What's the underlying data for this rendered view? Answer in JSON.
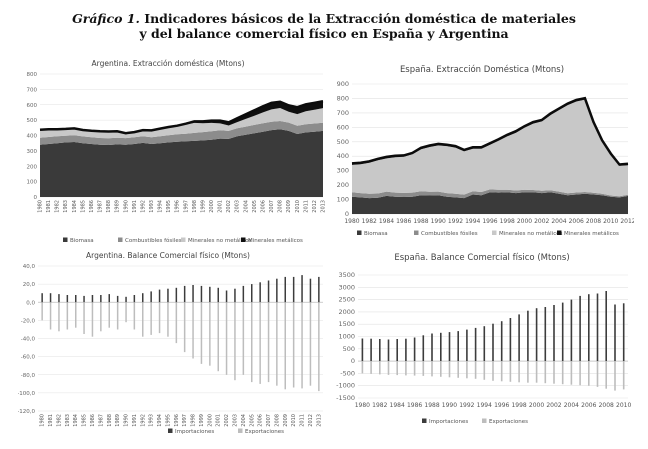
{
  "figure": {
    "title_prefix": "Gráfico 1.",
    "title_line1": "Indicadores básicos de la Extracción doméstica de materiales",
    "title_line2": "y del balance comercial físico en España y Argentina"
  },
  "chart_data": [
    {
      "id": "arg-extraccion",
      "type": "area",
      "stacked": true,
      "title": "Argentina. Extracción doméstica (Mtons)",
      "ylim": [
        0,
        800
      ],
      "yticks": [
        0,
        100,
        200,
        300,
        400,
        500,
        600,
        700,
        800
      ],
      "grid": true,
      "legend_position": "bottom",
      "x": [
        1980,
        1981,
        1982,
        1983,
        1984,
        1985,
        1986,
        1987,
        1988,
        1989,
        1990,
        1991,
        1992,
        1993,
        1994,
        1995,
        1996,
        1997,
        1998,
        1999,
        2000,
        2001,
        2002,
        2003,
        2004,
        2005,
        2006,
        2007,
        2008,
        2009,
        2010,
        2011,
        2012,
        2013
      ],
      "series": [
        {
          "name": "Biomasa",
          "color": "#3a3a3a",
          "values": [
            340,
            345,
            350,
            355,
            358,
            350,
            345,
            340,
            338,
            342,
            340,
            345,
            352,
            345,
            350,
            355,
            360,
            362,
            365,
            368,
            372,
            380,
            378,
            395,
            405,
            415,
            425,
            435,
            440,
            430,
            410,
            420,
            425,
            430
          ]
        },
        {
          "name": "Combustibles fósiles",
          "color": "#8c8c8c",
          "values": [
            45,
            45,
            45,
            44,
            44,
            44,
            44,
            44,
            44,
            43,
            43,
            43,
            43,
            44,
            45,
            46,
            48,
            50,
            52,
            54,
            55,
            54,
            52,
            52,
            53,
            54,
            55,
            55,
            54,
            54,
            54,
            53,
            53,
            53
          ]
        },
        {
          "name": "Minerales no metálicos",
          "color": "#c8c8c8",
          "values": [
            50,
            48,
            44,
            42,
            42,
            40,
            40,
            42,
            42,
            40,
            30,
            32,
            38,
            42,
            48,
            52,
            54,
            60,
            65,
            58,
            55,
            45,
            35,
            40,
            50,
            60,
            70,
            80,
            85,
            70,
            75,
            85,
            90,
            95
          ]
        },
        {
          "name": "Minerales metálicos",
          "color": "#0f0f0f",
          "values": [
            2,
            2,
            2,
            2,
            2,
            2,
            2,
            2,
            2,
            2,
            2,
            2,
            2,
            2,
            2,
            2,
            2,
            5,
            10,
            12,
            15,
            18,
            20,
            25,
            30,
            35,
            40,
            42,
            40,
            42,
            45,
            45,
            45,
            45
          ]
        }
      ]
    },
    {
      "id": "esp-extraccion",
      "type": "area",
      "stacked": true,
      "title": "España. Extracción Doméstica (Mtons)",
      "ylim": [
        0,
        900
      ],
      "yticks": [
        0,
        100,
        200,
        300,
        400,
        500,
        600,
        700,
        800,
        900
      ],
      "grid": true,
      "legend_position": "bottom",
      "x": [
        1980,
        1981,
        1982,
        1983,
        1984,
        1985,
        1986,
        1987,
        1988,
        1989,
        1990,
        1991,
        1992,
        1993,
        1994,
        1995,
        1996,
        1997,
        1998,
        1999,
        2000,
        2001,
        2002,
        2003,
        2004,
        2005,
        2006,
        2007,
        2008,
        2009,
        2010,
        2011,
        2012
      ],
      "xticks": [
        "1980",
        "1982",
        "1984",
        "1986",
        "1988",
        "1990",
        "1992",
        "1994",
        "1996",
        "1998",
        "2000",
        "2002",
        "2004",
        "2006",
        "2008",
        "2010",
        "2012"
      ],
      "series": [
        {
          "name": "Biomasa",
          "color": "#3a3a3a",
          "values": [
            120,
            115,
            110,
            112,
            125,
            120,
            118,
            120,
            130,
            128,
            130,
            120,
            115,
            110,
            135,
            130,
            150,
            148,
            150,
            145,
            150,
            150,
            145,
            150,
            140,
            130,
            135,
            140,
            135,
            130,
            120,
            115,
            125
          ]
        },
        {
          "name": "Combustibles fósiles",
          "color": "#8c8c8c",
          "values": [
            30,
            30,
            30,
            30,
            30,
            28,
            28,
            28,
            28,
            26,
            25,
            25,
            25,
            24,
            22,
            22,
            20,
            20,
            18,
            18,
            18,
            16,
            16,
            15,
            15,
            14,
            14,
            12,
            12,
            10,
            8,
            8,
            8
          ]
        },
        {
          "name": "Minerales no metálicos",
          "color": "#c8c8c8",
          "values": [
            190,
            200,
            215,
            230,
            230,
            245,
            250,
            265,
            290,
            310,
            320,
            325,
            320,
            300,
            295,
            300,
            310,
            340,
            370,
            400,
            430,
            460,
            480,
            520,
            565,
            610,
            630,
            640,
            480,
            360,
            280,
            210,
            205
          ]
        },
        {
          "name": "Minerales metálicos",
          "color": "#0f0f0f",
          "values": [
            10,
            10,
            10,
            10,
            10,
            10,
            10,
            10,
            10,
            10,
            10,
            10,
            10,
            10,
            10,
            10,
            10,
            10,
            10,
            10,
            10,
            10,
            10,
            10,
            10,
            10,
            10,
            10,
            10,
            10,
            10,
            10,
            10
          ]
        }
      ]
    },
    {
      "id": "arg-balance",
      "type": "bar",
      "title": "Argentina. Balance Comercial físico (Mtons)",
      "ylim": [
        -120,
        40
      ],
      "yticks": [
        "40,0",
        "20,0",
        "0,0",
        "-20,0",
        "-40,0",
        "-60,0",
        "-80,0",
        "-100,0",
        "-120,0"
      ],
      "grid": true,
      "legend_position": "bottom",
      "categories": [
        "1980",
        "1981",
        "1982",
        "1983",
        "1984",
        "1985",
        "1986",
        "1987",
        "1988",
        "1989",
        "1990",
        "1991",
        "1992",
        "1993",
        "1994",
        "1995",
        "1996",
        "1997",
        "1998",
        "1999",
        "2000",
        "2001",
        "2002",
        "2003",
        "2004",
        "2005",
        "2006",
        "2007",
        "2008",
        "2009",
        "2010",
        "2011",
        "2012",
        "2013"
      ],
      "series": [
        {
          "name": "Importaciones",
          "color": "#3c3c3c",
          "values": [
            10,
            10,
            9,
            8,
            8,
            7,
            8,
            8,
            9,
            7,
            6,
            8,
            10,
            12,
            14,
            15,
            16,
            18,
            19,
            18,
            17,
            16,
            13,
            15,
            18,
            20,
            22,
            24,
            26,
            28,
            28,
            30,
            26,
            28
          ]
        },
        {
          "name": "Exportaciones",
          "color": "#bdbdbd",
          "values": [
            -20,
            -30,
            -32,
            -30,
            -28,
            -35,
            -38,
            -32,
            -28,
            -30,
            -22,
            -30,
            -38,
            -36,
            -34,
            -38,
            -45,
            -55,
            -62,
            -68,
            -70,
            -76,
            -80,
            -86,
            -80,
            -88,
            -90,
            -88,
            -92,
            -96,
            -94,
            -95,
            -92,
            -98
          ]
        }
      ]
    },
    {
      "id": "esp-balance",
      "type": "bar",
      "title": "España. Balance Comercial físico (Mtons)",
      "ylim": [
        -1500,
        3500
      ],
      "yticks": [
        -1500,
        -1000,
        -500,
        0,
        500,
        1000,
        1500,
        2000,
        2500,
        3000,
        3500
      ],
      "grid": true,
      "legend_position": "bottom",
      "categories": [
        "1980",
        "1981",
        "1982",
        "1983",
        "1984",
        "1985",
        "1986",
        "1987",
        "1988",
        "1989",
        "1990",
        "1991",
        "1992",
        "1993",
        "1994",
        "1995",
        "1996",
        "1997",
        "1998",
        "1999",
        "2000",
        "2001",
        "2002",
        "2003",
        "2004",
        "2005",
        "2006",
        "2007",
        "2008",
        "2009",
        "2010"
      ],
      "xticks": [
        "1980",
        "1982",
        "1984",
        "1986",
        "1988",
        "1990",
        "1992",
        "1994",
        "1996",
        "1998",
        "2000",
        "2002",
        "2004",
        "2006",
        "2008",
        "2010"
      ],
      "series": [
        {
          "name": "Importaciones",
          "color": "#3c3c3c",
          "values": [
            920,
            910,
            900,
            880,
            900,
            910,
            960,
            1050,
            1120,
            1150,
            1180,
            1220,
            1280,
            1350,
            1420,
            1520,
            1620,
            1750,
            1900,
            2050,
            2150,
            2200,
            2280,
            2380,
            2500,
            2650,
            2720,
            2750,
            2850,
            2300,
            2350
          ]
        },
        {
          "name": "Exportaciones",
          "color": "#bdbdbd",
          "values": [
            -500,
            -520,
            -540,
            -560,
            -570,
            -580,
            -590,
            -600,
            -620,
            -640,
            -660,
            -680,
            -700,
            -720,
            -760,
            -800,
            -820,
            -840,
            -860,
            -880,
            -880,
            -900,
            -920,
            -940,
            -960,
            -980,
            -1000,
            -1050,
            -1120,
            -1200,
            -1150
          ]
        }
      ]
    }
  ]
}
